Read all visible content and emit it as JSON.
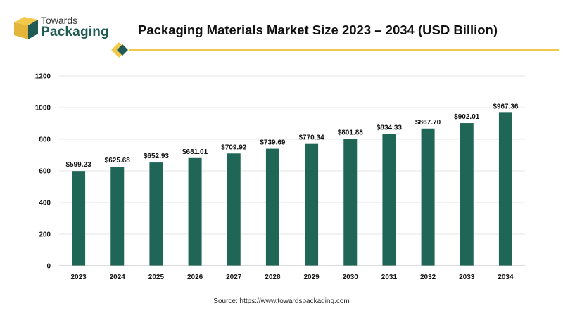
{
  "brand": {
    "line1": "Towards",
    "line2": "Packaging"
  },
  "colors": {
    "bar": "#1f6657",
    "accent": "#f2c94c",
    "brand_teal": "#1f5b54",
    "grid": "#e6e6e6"
  },
  "source": "Source: https://www.towardspackaging.com",
  "chart_data": {
    "type": "bar",
    "title": "Packaging Materials Market Size 2023 – 2034 (USD Billion)",
    "xlabel": "",
    "ylabel": "",
    "categories": [
      "2023",
      "2024",
      "2025",
      "2026",
      "2027",
      "2028",
      "2029",
      "2030",
      "2031",
      "2032",
      "2033",
      "2034"
    ],
    "values": [
      599.23,
      625.68,
      652.93,
      681.01,
      709.92,
      739.69,
      770.34,
      801.88,
      834.33,
      867.7,
      902.01,
      967.36
    ],
    "value_labels": [
      "$599.23",
      "$625.68",
      "$652.93",
      "$681.01",
      "$709.92",
      "$739.69",
      "$770.34",
      "$801.88",
      "$834.33",
      "$867.70",
      "$902.01",
      "$967.36"
    ],
    "ylim": [
      0,
      1200
    ],
    "yticks": [
      "0",
      "200",
      "400",
      "600",
      "800",
      "1000",
      "1200"
    ],
    "grid": true,
    "legend": "none"
  }
}
